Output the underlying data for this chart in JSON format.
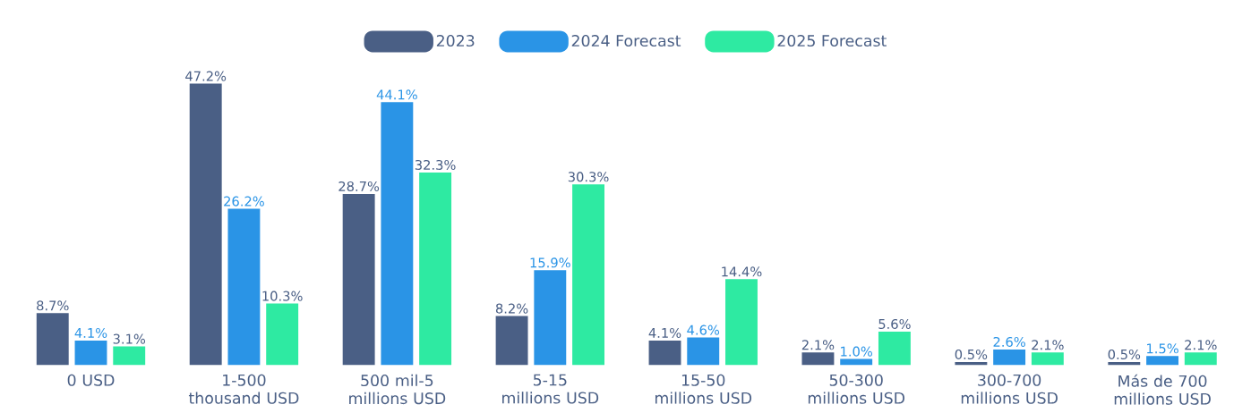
{
  "chart_data": {
    "type": "bar",
    "categories": [
      "0 USD",
      "1-500 thousand USD",
      "500 mil-5 millions USD",
      "5-15 millions USD",
      "15-50 millions USD",
      "50-300 millions USD",
      "300-700 millions USD",
      "Más de 700 millions USD"
    ],
    "series": [
      {
        "name": "2023",
        "color": "#4a5f85",
        "values": [
          8.7,
          47.2,
          28.7,
          8.2,
          4.1,
          2.1,
          0.5,
          0.5
        ],
        "value_labels": [
          "8.7%",
          "47.2%",
          "28.7%",
          "8.2%",
          "4.1%",
          "2.1%",
          "0.5%",
          "0.5%"
        ]
      },
      {
        "name": "2024 Forecast",
        "color": "#2a94e6",
        "values": [
          4.1,
          26.2,
          44.1,
          15.9,
          4.6,
          1.0,
          2.6,
          1.5
        ],
        "value_labels": [
          "4.1%",
          "26.2%",
          "44.1%",
          "15.9%",
          "4.6%",
          "1.0%",
          "2.6%",
          "1.5%"
        ]
      },
      {
        "name": "2025 Forecast",
        "color": "#2eeaa2",
        "values": [
          3.1,
          10.3,
          32.3,
          30.3,
          14.4,
          5.6,
          2.1,
          2.1
        ],
        "value_labels": [
          "3.1%",
          "10.3%",
          "32.3%",
          "30.3%",
          "14.4%",
          "5.6%",
          "2.1%",
          "2.1%"
        ]
      }
    ],
    "legend": "top"
  }
}
